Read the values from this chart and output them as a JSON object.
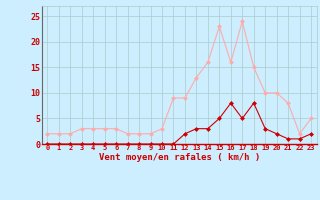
{
  "hours": [
    0,
    1,
    2,
    3,
    4,
    5,
    6,
    7,
    8,
    9,
    10,
    11,
    12,
    13,
    14,
    15,
    16,
    17,
    18,
    19,
    20,
    21,
    22,
    23
  ],
  "wind_avg": [
    0,
    0,
    0,
    0,
    0,
    0,
    0,
    0,
    0,
    0,
    0,
    0,
    2,
    3,
    3,
    5,
    8,
    5,
    8,
    3,
    2,
    1,
    1,
    2
  ],
  "wind_gust": [
    2,
    2,
    2,
    3,
    3,
    3,
    3,
    2,
    2,
    2,
    3,
    9,
    9,
    13,
    16,
    23,
    16,
    24,
    15,
    10,
    10,
    8,
    2,
    5
  ],
  "avg_color": "#cc0000",
  "gust_color": "#ffaaaa",
  "bg_color": "#cceeff",
  "grid_color": "#aacccc",
  "xlabel": "Vent moyen/en rafales ( km/h )",
  "xlabel_color": "#cc0000",
  "tick_color": "#cc0000",
  "ylim": [
    0,
    27
  ],
  "yticks": [
    0,
    5,
    10,
    15,
    20,
    25
  ],
  "marker_size": 2.5,
  "linewidth": 0.8
}
